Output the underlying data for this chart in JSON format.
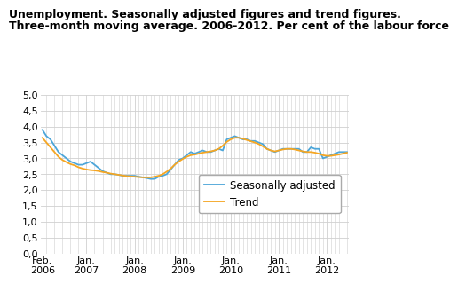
{
  "title_line1": "Unemployment. Seasonally adjusted figures and trend figures.",
  "title_line2": "Three-month moving average. 2006-2012. Per cent of the labour force",
  "seasonally_adjusted": [
    3.9,
    3.7,
    3.6,
    3.4,
    3.2,
    3.1,
    3.0,
    2.9,
    2.85,
    2.8,
    2.8,
    2.85,
    2.9,
    2.8,
    2.7,
    2.6,
    2.55,
    2.5,
    2.5,
    2.48,
    2.45,
    2.45,
    2.45,
    2.45,
    2.42,
    2.4,
    2.38,
    2.35,
    2.35,
    2.42,
    2.45,
    2.5,
    2.65,
    2.8,
    2.95,
    3.0,
    3.1,
    3.2,
    3.15,
    3.2,
    3.25,
    3.2,
    3.2,
    3.25,
    3.3,
    3.25,
    3.6,
    3.65,
    3.7,
    3.65,
    3.6,
    3.6,
    3.55,
    3.55,
    3.5,
    3.45,
    3.3,
    3.25,
    3.2,
    3.25,
    3.3,
    3.3,
    3.3,
    3.3,
    3.3,
    3.2,
    3.2,
    3.35,
    3.3,
    3.3,
    3.0,
    3.05,
    3.1,
    3.15,
    3.2,
    3.2,
    3.2
  ],
  "trend": [
    3.65,
    3.5,
    3.35,
    3.2,
    3.05,
    2.95,
    2.88,
    2.82,
    2.78,
    2.72,
    2.68,
    2.65,
    2.63,
    2.62,
    2.6,
    2.57,
    2.55,
    2.52,
    2.5,
    2.48,
    2.46,
    2.44,
    2.43,
    2.42,
    2.41,
    2.4,
    2.4,
    2.4,
    2.42,
    2.45,
    2.5,
    2.58,
    2.68,
    2.8,
    2.9,
    2.98,
    3.05,
    3.1,
    3.12,
    3.15,
    3.18,
    3.2,
    3.22,
    3.25,
    3.3,
    3.4,
    3.52,
    3.6,
    3.65,
    3.65,
    3.62,
    3.58,
    3.54,
    3.5,
    3.45,
    3.38,
    3.3,
    3.25,
    3.22,
    3.25,
    3.28,
    3.3,
    3.3,
    3.28,
    3.25,
    3.22,
    3.2,
    3.2,
    3.18,
    3.15,
    3.1,
    3.08,
    3.08,
    3.1,
    3.12,
    3.15,
    3.18
  ],
  "ylim": [
    0.0,
    5.0
  ],
  "yticks": [
    0.0,
    0.5,
    1.0,
    1.5,
    2.0,
    2.5,
    3.0,
    3.5,
    4.0,
    4.5,
    5.0
  ],
  "sa_color": "#4da6d9",
  "trend_color": "#f5a623",
  "sa_label": "Seasonally adjusted",
  "trend_label": "Trend",
  "grid_color": "#d0d0d0",
  "title_fontsize": 9.0,
  "legend_fontsize": 8.5,
  "tick_fontsize": 8.0,
  "x_tick_labels": [
    "Feb.\n2006",
    "Jan.\n2007",
    "Jan.\n2008",
    "Jan.\n2009",
    "Jan.\n2010",
    "Jan.\n2011",
    "Jan.\n2012"
  ],
  "x_tick_positions": [
    0,
    11,
    23,
    35,
    47,
    59,
    71
  ]
}
